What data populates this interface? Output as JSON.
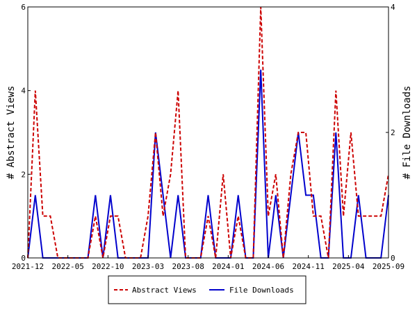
{
  "chart_data": {
    "type": "line",
    "xlabel": "",
    "y_left_label": "# Abstract Views",
    "y_right_label": "# File Downloads",
    "y_left_range": [
      0,
      6
    ],
    "y_right_range": [
      0,
      4
    ],
    "y_left_ticks": [
      "0",
      "2",
      "4",
      "6"
    ],
    "y_right_ticks": [
      "0",
      "2",
      "4"
    ],
    "x_tick_labels": [
      "2021-12",
      "2022-05",
      "2022-10",
      "2023-03",
      "2023-08",
      "2024-01",
      "2024-06",
      "2024-11",
      "2025-04",
      "2025-09"
    ],
    "grid": false,
    "legend_position": "bottom-center",
    "series": [
      {
        "name": "Abstract Views",
        "axis": "left",
        "color": "#cc0000",
        "style": "dashed",
        "values": [
          0,
          4,
          1,
          1,
          0,
          0,
          0,
          0,
          0,
          1,
          0,
          1,
          1,
          0,
          0,
          0,
          1,
          3,
          1,
          2,
          4,
          0,
          0,
          0,
          1,
          0,
          2,
          0,
          1,
          0,
          0,
          6,
          1,
          2,
          0,
          2,
          3,
          3,
          1,
          1,
          0,
          4,
          1,
          3,
          1,
          1,
          1,
          1,
          2
        ]
      },
      {
        "name": "File Downloads",
        "axis": "right",
        "color": "#0000cc",
        "style": "solid",
        "values": [
          0,
          1,
          0,
          0,
          0,
          0,
          0,
          0,
          0,
          1,
          0,
          1,
          0,
          0,
          0,
          0,
          0,
          2,
          1,
          0,
          1,
          0,
          0,
          0,
          1,
          0,
          0,
          0,
          1,
          0,
          0,
          3,
          0,
          1,
          0,
          1,
          2,
          1,
          1,
          0,
          0,
          2,
          0,
          0,
          1,
          0,
          0,
          0,
          1
        ]
      }
    ]
  }
}
